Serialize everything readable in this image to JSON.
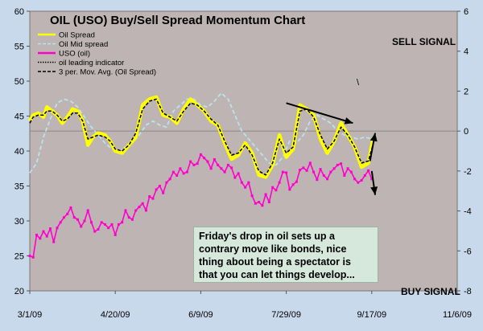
{
  "colors": {
    "frame": "#c9d9ec",
    "plot_area": "#bfb4b4",
    "oil_spread": "#ffff00",
    "oil_mid_spread": "#b8e4ee",
    "uso": "#ff00cc",
    "indicator": "#000000",
    "note_bg": "#d6e8dc"
  },
  "chart_data": {
    "type": "line",
    "title": "OIL (USO) Buy/Sell Spread Momentum Chart",
    "x_tick_labels": [
      "3/1/09",
      "4/20/09",
      "6/9/09",
      "7/29/09",
      "9/17/09",
      "11/6/09"
    ],
    "x_range": [
      "3/1/09",
      "11/6/09"
    ],
    "y_left": {
      "range": [
        20,
        60
      ],
      "ticks": [
        20,
        25,
        30,
        35,
        40,
        45,
        50,
        55,
        60
      ]
    },
    "y_right": {
      "range": [
        -8,
        6
      ],
      "ticks": [
        -8,
        -6,
        -4,
        -2,
        0,
        2,
        4,
        6
      ]
    },
    "zero_reference_line": 0,
    "annotations": {
      "sell_signal": "SELL SIGNAL",
      "buy_signal": "BUY SIGNAL",
      "mark": "\\"
    },
    "note": [
      "Friday's drop in oil sets up a",
      "contrary move like bonds, nice",
      "thing about being a spectator is",
      "that you can let things develop..."
    ],
    "legend": [
      {
        "label": "Oil Spread",
        "style": "solid",
        "color": "#ffff00"
      },
      {
        "label": "Oil Mid spread",
        "style": "dashed",
        "color": "#b8e4ee"
      },
      {
        "label": "USO (oil)",
        "style": "solid",
        "color": "#ff00cc"
      },
      {
        "label": "oil leading indicator",
        "style": "dotted",
        "color": "#000000"
      },
      {
        "label": "3 per. Mov. Avg. (Oil Spread)",
        "style": "dashed",
        "color": "#000000"
      }
    ],
    "series": [
      {
        "name": "Oil Spread",
        "axis": "right",
        "x": [
          "3/1/09",
          "3/3/09",
          "3/6/09",
          "3/9/09",
          "3/11/09",
          "3/14/09",
          "3/17/09",
          "3/20/09",
          "3/23/09",
          "3/26/09",
          "3/29/09",
          "4/1/09",
          "4/4/09",
          "4/7/09",
          "4/10/09",
          "4/14/09",
          "4/17/09",
          "4/20/09",
          "4/24/09",
          "4/28/09",
          "5/2/09",
          "5/6/09",
          "5/10/09",
          "5/14/09",
          "5/18/09",
          "5/22/09",
          "5/26/09",
          "5/30/09",
          "6/3/09",
          "6/7/09",
          "6/11/09",
          "6/15/09",
          "6/19/09",
          "6/23/09",
          "6/27/09",
          "7/1/09",
          "7/5/09",
          "7/9/09",
          "7/13/09",
          "7/17/09",
          "7/21/09",
          "7/25/09",
          "7/29/09",
          "8/2/09",
          "8/6/09",
          "8/10/09",
          "8/14/09",
          "8/18/09",
          "8/22/09",
          "8/26/09",
          "8/30/09",
          "9/3/09",
          "9/7/09",
          "9/11/09",
          "9/15/09",
          "9/18/09"
        ],
        "values": [
          0.5,
          0.8,
          0.9,
          0.7,
          1.2,
          1.0,
          0.8,
          0.4,
          0.7,
          1.1,
          1.0,
          0.5,
          -0.7,
          -0.3,
          -0.1,
          -0.2,
          -0.5,
          -1.0,
          -1.1,
          -0.7,
          -0.3,
          1.3,
          1.6,
          1.7,
          0.8,
          0.7,
          0.4,
          1.1,
          1.6,
          1.3,
          1.0,
          0.5,
          0.3,
          -0.6,
          -1.4,
          -1.2,
          -0.6,
          -1.1,
          -2.2,
          -2.3,
          -1.7,
          -0.2,
          -1.3,
          -0.9,
          1.3,
          1.1,
          0.8,
          -0.4,
          -1.1,
          -0.5,
          0.4,
          -0.2,
          -0.8,
          -1.8,
          -1.6,
          -0.3
        ]
      },
      {
        "name": "Oil Mid spread",
        "axis": "right",
        "x": [
          "3/1/09",
          "3/5/09",
          "3/9/09",
          "3/13/09",
          "3/17/09",
          "3/21/09",
          "3/25/09",
          "3/29/09",
          "4/2/09",
          "4/6/09",
          "4/10/09",
          "4/14/09",
          "4/18/09",
          "4/22/09",
          "4/26/09",
          "4/30/09",
          "5/4/09",
          "5/8/09",
          "5/12/09",
          "5/16/09",
          "5/20/09",
          "5/24/09",
          "5/28/09",
          "6/1/09",
          "6/5/09",
          "6/9/09",
          "6/13/09",
          "6/17/09",
          "6/21/09",
          "6/25/09",
          "6/29/09",
          "7/3/09",
          "7/7/09",
          "7/11/09",
          "7/15/09",
          "7/19/09",
          "7/23/09",
          "7/27/09",
          "7/31/09",
          "8/4/09",
          "8/8/09",
          "8/12/09",
          "8/16/09",
          "8/20/09",
          "8/24/09",
          "8/28/09",
          "9/1/09",
          "9/5/09",
          "9/9/09",
          "9/13/09",
          "9/17/09"
        ],
        "values": [
          -2.1,
          -1.6,
          -0.3,
          0.6,
          1.4,
          1.6,
          1.5,
          1.2,
          0.7,
          0.2,
          -0.2,
          -0.6,
          -0.9,
          -1.0,
          -0.8,
          -0.6,
          -0.2,
          0.3,
          0.5,
          0.3,
          0.2,
          1.0,
          1.3,
          1.6,
          1.6,
          1.3,
          1.2,
          1.5,
          1.9,
          1.6,
          0.8,
          0.0,
          -0.4,
          -0.8,
          -1.2,
          -1.6,
          -1.7,
          -1.3,
          -0.5,
          -0.6,
          -0.2,
          0.5,
          0.8,
          0.6,
          0.4,
          0.0,
          -0.2,
          -0.3,
          -0.4,
          -0.3,
          -0.4
        ]
      },
      {
        "name": "USO (oil)",
        "axis": "left",
        "x": [
          "3/1/09",
          "3/3/09",
          "3/5/09",
          "3/7/09",
          "3/9/09",
          "3/11/09",
          "3/13/09",
          "3/15/09",
          "3/17/09",
          "3/19/09",
          "3/21/09",
          "3/23/09",
          "3/25/09",
          "3/27/09",
          "3/29/09",
          "3/31/09",
          "4/2/09",
          "4/4/09",
          "4/6/09",
          "4/8/09",
          "4/10/09",
          "4/12/09",
          "4/14/09",
          "4/16/09",
          "4/18/09",
          "4/20/09",
          "4/22/09",
          "4/24/09",
          "4/26/09",
          "4/28/09",
          "4/30/09",
          "5/2/09",
          "5/4/09",
          "5/6/09",
          "5/8/09",
          "5/10/09",
          "5/12/09",
          "5/14/09",
          "5/16/09",
          "5/18/09",
          "5/20/09",
          "5/22/09",
          "5/24/09",
          "5/26/09",
          "5/28/09",
          "5/30/09",
          "6/1/09",
          "6/3/09",
          "6/5/09",
          "6/7/09",
          "6/9/09",
          "6/11/09",
          "6/13/09",
          "6/15/09",
          "6/17/09",
          "6/19/09",
          "6/21/09",
          "6/23/09",
          "6/25/09",
          "6/27/09",
          "6/29/09",
          "7/1/09",
          "7/3/09",
          "7/5/09",
          "7/7/09",
          "7/9/09",
          "7/11/09",
          "7/13/09",
          "7/15/09",
          "7/17/09",
          "7/19/09",
          "7/21/09",
          "7/23/09",
          "7/25/09",
          "7/27/09",
          "7/29/09",
          "7/31/09",
          "8/2/09",
          "8/4/09",
          "8/6/09",
          "8/8/09",
          "8/10/09",
          "8/12/09",
          "8/14/09",
          "8/16/09",
          "8/18/09",
          "8/20/09",
          "8/22/09",
          "8/24/09",
          "8/26/09",
          "8/28/09",
          "8/30/09",
          "9/1/09",
          "9/3/09",
          "9/5/09",
          "9/7/09",
          "9/9/09",
          "9/11/09",
          "9/13/09",
          "9/15/09",
          "9/17/09"
        ],
        "values": [
          25.0,
          24.8,
          28.0,
          27.5,
          28.5,
          27.8,
          28.9,
          27.0,
          29.0,
          29.8,
          30.5,
          31.0,
          31.9,
          30.5,
          30.2,
          29.2,
          30.0,
          31.5,
          29.8,
          28.5,
          28.8,
          29.8,
          29.5,
          29.0,
          29.5,
          28.0,
          29.5,
          29.8,
          31.5,
          30.5,
          30.2,
          31.5,
          32.0,
          32.5,
          31.5,
          33.5,
          33.2,
          34.5,
          35.0,
          34.0,
          35.5,
          36.0,
          37.0,
          36.5,
          37.5,
          36.8,
          37.0,
          38.5,
          38.0,
          38.2,
          39.5,
          39.0,
          38.5,
          37.5,
          38.8,
          38.0,
          37.5,
          37.0,
          38.0,
          37.6,
          36.2,
          36.8,
          35.5,
          34.8,
          35.5,
          33.6,
          32.5,
          32.7,
          32.2,
          33.8,
          32.7,
          34.8,
          34.4,
          35.5,
          37.0,
          36.9,
          34.5,
          35.2,
          35.6,
          37.3,
          37.6,
          37.2,
          38.3,
          37.0,
          35.9,
          37.4,
          36.5,
          36.0,
          37.0,
          37.5,
          38.0,
          38.2,
          36.5,
          37.5,
          37.0,
          36.0,
          35.5,
          35.8,
          36.5,
          37.2,
          36.0
        ]
      },
      {
        "name": "3 per. Mov. Avg. (Oil Spread)",
        "axis": "right",
        "x": [
          "3/1/09",
          "3/3/09",
          "3/6/09",
          "3/9/09",
          "3/11/09",
          "3/14/09",
          "3/17/09",
          "3/20/09",
          "3/23/09",
          "3/26/09",
          "3/29/09",
          "4/1/09",
          "4/4/09",
          "4/7/09",
          "4/10/09",
          "4/14/09",
          "4/17/09",
          "4/20/09",
          "4/24/09",
          "4/28/09",
          "5/2/09",
          "5/6/09",
          "5/10/09",
          "5/14/09",
          "5/18/09",
          "5/22/09",
          "5/26/09",
          "5/30/09",
          "6/3/09",
          "6/7/09",
          "6/11/09",
          "6/15/09",
          "6/19/09",
          "6/23/09",
          "6/27/09",
          "7/1/09",
          "7/5/09",
          "7/9/09",
          "7/13/09",
          "7/17/09",
          "7/21/09",
          "7/25/09",
          "7/29/09",
          "8/2/09",
          "8/6/09",
          "8/10/09",
          "8/14/09",
          "8/18/09",
          "8/22/09",
          "8/26/09",
          "8/30/09",
          "9/3/09",
          "9/7/09",
          "9/11/09",
          "9/15/09",
          "9/18/09"
        ],
        "values": [
          0.4,
          0.7,
          0.8,
          0.8,
          1.0,
          1.0,
          0.8,
          0.5,
          0.6,
          0.9,
          0.9,
          0.5,
          -0.4,
          -0.3,
          -0.2,
          -0.3,
          -0.5,
          -0.9,
          -1.0,
          -0.7,
          -0.1,
          1.1,
          1.5,
          1.6,
          0.9,
          0.7,
          0.5,
          1.0,
          1.4,
          1.3,
          1.0,
          0.6,
          0.3,
          -0.5,
          -1.2,
          -1.1,
          -0.7,
          -1.2,
          -2.0,
          -2.2,
          -1.6,
          -0.4,
          -1.1,
          -0.8,
          1.0,
          1.1,
          0.7,
          -0.2,
          -0.9,
          -0.5,
          0.2,
          -0.2,
          -0.8,
          -1.6,
          -1.5,
          -0.6
        ]
      }
    ],
    "arrows": [
      {
        "from": {
          "x": "7/29/09",
          "y": 1.4
        },
        "to": {
          "x": "9/6/09",
          "y": 0.4
        }
      },
      {
        "from": {
          "x": "9/16/09",
          "y": -1.5
        },
        "to": {
          "x": "9/19/09",
          "y": -0.1
        }
      },
      {
        "from": {
          "x": "9/17/09",
          "y": -2.0
        },
        "to": {
          "x": "9/19/09",
          "y": -3.2
        }
      }
    ]
  }
}
